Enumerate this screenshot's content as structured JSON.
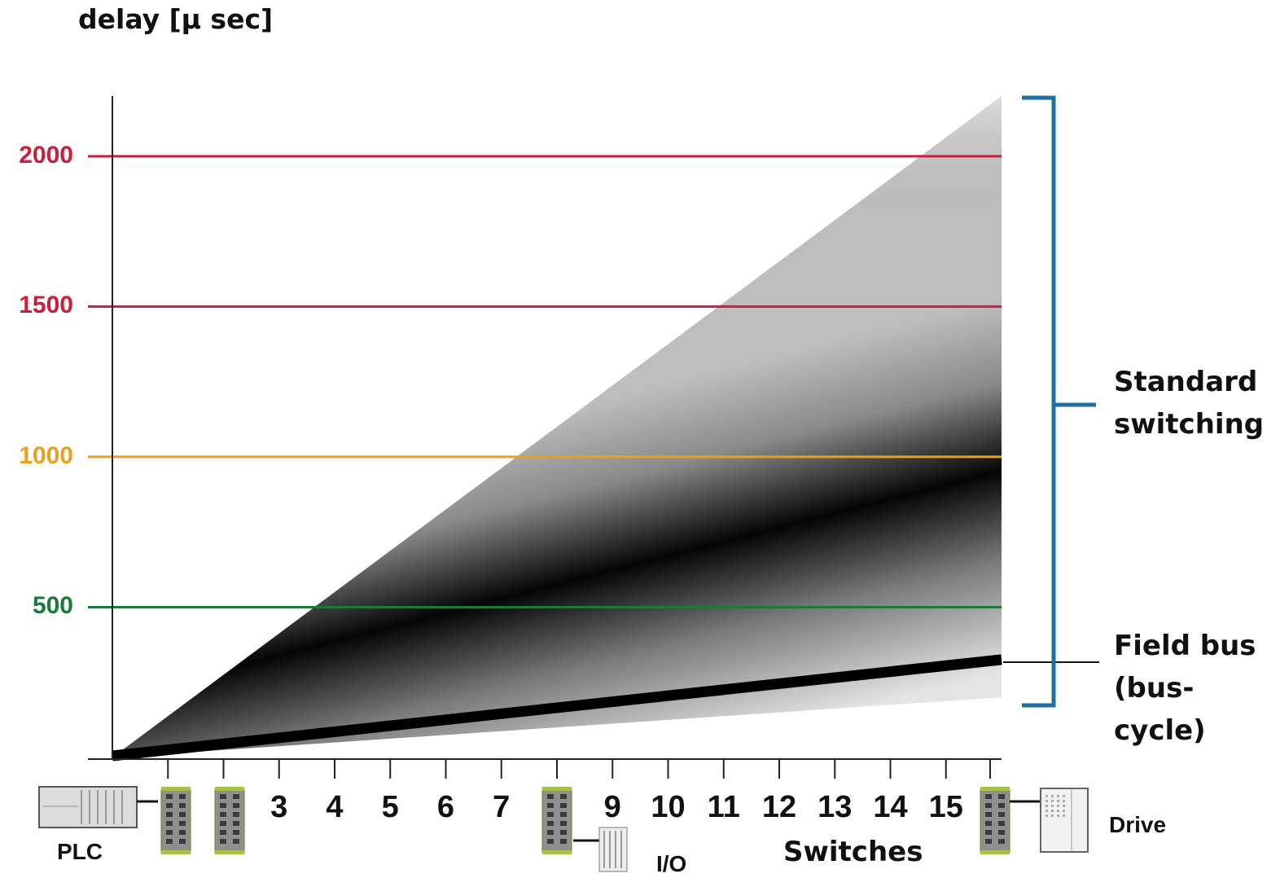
{
  "chart_data": {
    "type": "area",
    "ylabel": "delay [µ sec]",
    "xlabel": "Switches",
    "x_ticks": [
      "",
      "",
      "3",
      "4",
      "5",
      "6",
      "7",
      "",
      "9",
      "10",
      "11",
      "12",
      "13",
      "14",
      "15",
      ""
    ],
    "x_range": [
      0,
      16
    ],
    "y_ticks": [
      {
        "value": 500,
        "label": "500",
        "color": "#1a7a3a"
      },
      {
        "value": 1000,
        "label": "1000",
        "color": "#e8a020"
      },
      {
        "value": 1500,
        "label": "1500",
        "color": "#c8203a"
      },
      {
        "value": 2000,
        "label": "2000",
        "color": "#c8203a"
      }
    ],
    "ylim": [
      0,
      2200
    ],
    "threshold_lines": [
      500,
      1000,
      1500,
      2000
    ],
    "standard_switching_band": {
      "x": [
        0,
        16
      ],
      "upper": [
        0,
        2200
      ],
      "center": [
        0,
        1100
      ],
      "lower": [
        0,
        200
      ]
    },
    "field_bus_line": {
      "x": [
        0,
        16
      ],
      "y": [
        0,
        320
      ]
    },
    "annotations": {
      "standard_switching": [
        "Standard",
        "switching"
      ],
      "field_bus": [
        "Field bus",
        "(bus-cycle)"
      ]
    },
    "devices": {
      "plc": "PLC",
      "io": "I/O",
      "drive": "Drive"
    },
    "colors": {
      "bracket": "#1f6fa0",
      "axis": "#222222"
    }
  }
}
